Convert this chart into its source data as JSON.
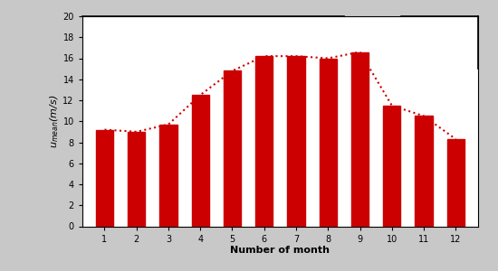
{
  "months": [
    1,
    2,
    3,
    4,
    5,
    6,
    7,
    8,
    9,
    10,
    11,
    12
  ],
  "bar_values": [
    9.2,
    9.0,
    9.7,
    12.5,
    14.8,
    16.2,
    16.2,
    16.0,
    16.6,
    11.5,
    10.5,
    8.3
  ],
  "bar_color": "#cc0000",
  "line_color": "#cc0000",
  "xlabel": "Number of month",
  "ylabel": "u$_{mean}$(m/s)",
  "ylim_min": 0,
  "ylim_max": 20,
  "yticks": [
    0,
    2,
    4,
    6,
    8,
    10,
    12,
    14,
    16,
    18,
    20
  ],
  "xticks": [
    1,
    2,
    3,
    4,
    5,
    6,
    7,
    8,
    9,
    10,
    11,
    12
  ],
  "bg_color": "#ffffff",
  "outer_bg": "#c8c8c8",
  "bar_width": 0.55,
  "xlim_min": 0.3,
  "xlim_max": 12.7,
  "top_line1_x1": 0.3,
  "top_line1_x2": 8.5,
  "top_line2_x1": 10.3,
  "top_line2_x2": 12.7,
  "right_line_y1": 20,
  "right_line_y2": 15.0
}
